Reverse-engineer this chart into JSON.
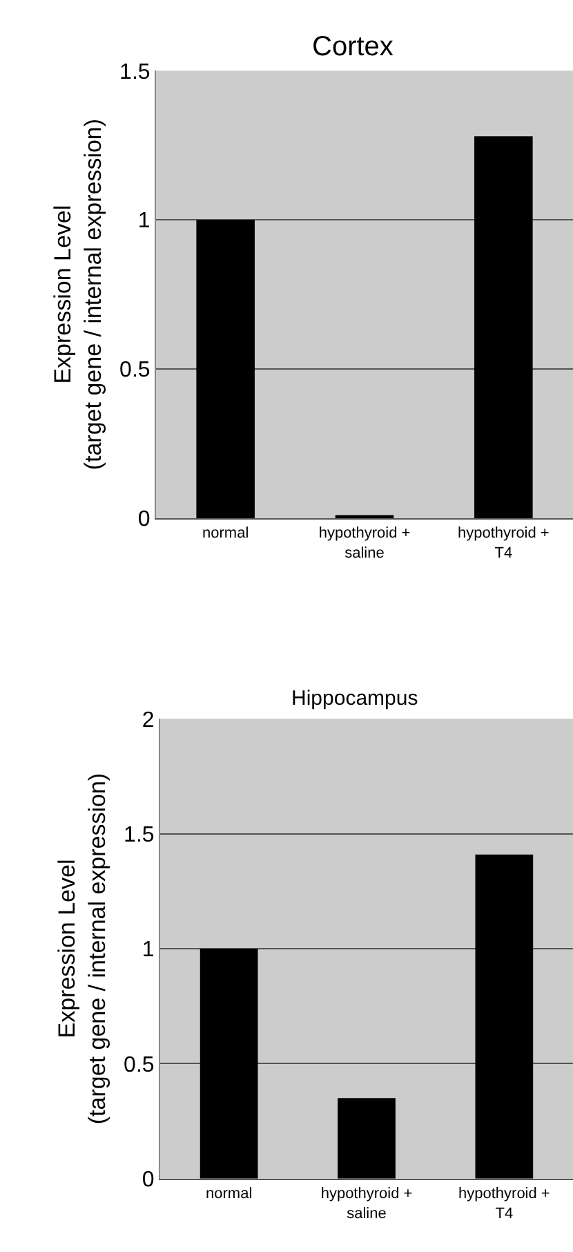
{
  "chart_data": [
    {
      "type": "bar",
      "title": "Cortex",
      "ylabel": "Expression Level\n(target gene / internal expression)",
      "categories": [
        "normal",
        "hypothyroid +\nsaline",
        "hypothyroid +\nT4"
      ],
      "values": [
        1.0,
        0.01,
        1.28
      ],
      "color": "#000000",
      "ylim": [
        0,
        1.5
      ],
      "yticks": [
        0,
        0.5,
        1,
        1.5
      ],
      "grid": "y"
    },
    {
      "type": "bar",
      "title": "Hippocampus",
      "ylabel": "Expression Level\n(target gene / internal expression)",
      "categories": [
        "normal",
        "hypothyroid +\nsaline",
        "hypothyroid +\nT4"
      ],
      "values": [
        1.0,
        0.35,
        1.41
      ],
      "color": "#000000",
      "ylim": [
        0,
        2
      ],
      "yticks": [
        0,
        0.5,
        1,
        1.5,
        2
      ],
      "grid": "y"
    }
  ]
}
